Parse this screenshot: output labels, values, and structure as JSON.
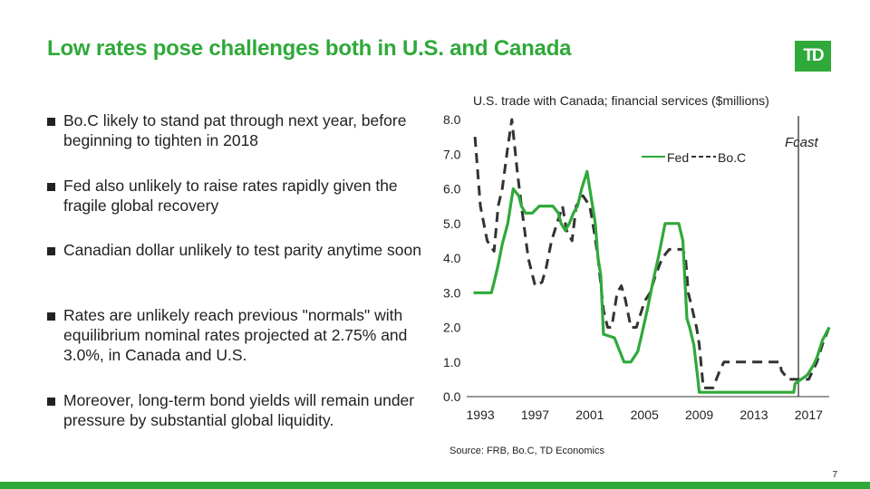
{
  "slide": {
    "title": "Low rates pose challenges both in U.S. and Canada",
    "logo_text": "TD",
    "page_number": "7",
    "accent_color": "#2fa939"
  },
  "bullets": [
    "Bo.C likely to stand pat through next year, before beginning to tighten in 2018",
    "Fed also unlikely to raise rates rapidly given the fragile global recovery",
    "Canadian dollar unlikely to test parity anytime soon",
    "Rates are unlikely reach previous \"normals\" with equilibrium nominal rates projected at 2.75% and 3.0%, in Canada and U.S.",
    "Moreover, long-term bond yields will remain under pressure by substantial global liquidity."
  ],
  "chart_data": {
    "type": "line",
    "title": "U.S. trade with Canada; financial services ($millions)",
    "source": "Source: FRB, Bo.C, TD Economics",
    "x_tick_labels": [
      "1993",
      "1997",
      "2001",
      "2005",
      "2009",
      "2013",
      "2017"
    ],
    "x_ticks": [
      1993,
      1997,
      2001,
      2005,
      2009,
      2013,
      2017
    ],
    "y_tick_labels": [
      "0.0",
      "1.0",
      "2.0",
      "3.0",
      "4.0",
      "5.0",
      "6.0",
      "7.0",
      "8.0"
    ],
    "xlim": [
      1992,
      2018.5
    ],
    "ylim": [
      0,
      8
    ],
    "forecast_start": 2016.25,
    "forecast_label": "Fcast",
    "series": [
      {
        "name": "Fed",
        "color": "#2fa939",
        "style": "solid",
        "x": [
          1992.5,
          1993.8,
          1994.0,
          1994.3,
          1994.6,
          1995.0,
          1995.4,
          1995.8,
          1996.0,
          1996.3,
          1996.8,
          1997.3,
          1997.8,
          1998.3,
          1998.7,
          1998.9,
          1999.2,
          1999.5,
          1999.8,
          2000.1,
          2000.4,
          2000.8,
          2001.0,
          2001.2,
          2001.4,
          2001.6,
          2001.8,
          2002.0,
          2002.8,
          2003.5,
          2004.0,
          2004.5,
          2004.8,
          2005.2,
          2005.6,
          2006.0,
          2006.5,
          2007.0,
          2007.5,
          2007.8,
          2008.0,
          2008.1,
          2008.3,
          2008.6,
          2008.9,
          2009.0,
          2012.0,
          2015.9,
          2016.0,
          2016.9,
          2017.3,
          2017.6,
          2018.0,
          2018.5
        ],
        "values": [
          3.0,
          3.0,
          3.3,
          3.8,
          4.4,
          5.0,
          6.0,
          5.8,
          5.5,
          5.3,
          5.3,
          5.5,
          5.5,
          5.5,
          5.3,
          5.0,
          4.8,
          5.0,
          5.3,
          5.5,
          6.0,
          6.5,
          6.0,
          5.5,
          5.0,
          4.0,
          3.5,
          1.8,
          1.7,
          1.0,
          1.0,
          1.3,
          1.8,
          2.5,
          3.3,
          4.0,
          5.0,
          5.0,
          5.0,
          4.5,
          3.0,
          2.25,
          2.0,
          1.5,
          0.5,
          0.125,
          0.125,
          0.125,
          0.375,
          0.625,
          0.875,
          1.125,
          1.625,
          2.0
        ]
      },
      {
        "name": "Bo.C",
        "color": "#333333",
        "style": "dashed",
        "x": [
          1992.6,
          1993.0,
          1993.5,
          1994.0,
          1994.3,
          1994.6,
          1995.0,
          1995.3,
          1995.7,
          1996.0,
          1996.5,
          1997.0,
          1997.5,
          1997.8,
          1998.2,
          1998.6,
          1999.0,
          1999.3,
          1999.7,
          2000.0,
          2000.5,
          2001.0,
          2001.3,
          2001.6,
          2002.0,
          2002.3,
          2002.6,
          2003.0,
          2003.3,
          2003.6,
          2004.0,
          2004.4,
          2004.8,
          2005.0,
          2005.4,
          2005.8,
          2006.3,
          2006.8,
          2007.3,
          2007.8,
          2008.0,
          2008.2,
          2008.5,
          2008.8,
          2009.0,
          2009.3,
          2010.0,
          2010.5,
          2010.8,
          2011.0,
          2014.9,
          2015.0,
          2015.5,
          2016.0,
          2017.0,
          2017.3,
          2017.6,
          2018.0,
          2018.5
        ],
        "values": [
          7.5,
          5.5,
          4.5,
          4.2,
          5.5,
          6.0,
          7.2,
          8.0,
          6.5,
          5.5,
          4.0,
          3.2,
          3.3,
          3.7,
          4.5,
          5.0,
          5.5,
          4.8,
          4.5,
          5.5,
          5.8,
          5.5,
          4.8,
          4.0,
          2.5,
          2.0,
          2.0,
          3.0,
          3.2,
          2.8,
          2.0,
          2.0,
          2.5,
          2.75,
          3.0,
          3.5,
          4.0,
          4.25,
          4.25,
          4.25,
          4.0,
          3.0,
          2.5,
          2.0,
          1.5,
          0.25,
          0.25,
          0.75,
          1.0,
          1.0,
          1.0,
          0.75,
          0.5,
          0.5,
          0.5,
          0.75,
          1.0,
          1.5,
          2.0
        ]
      }
    ]
  }
}
